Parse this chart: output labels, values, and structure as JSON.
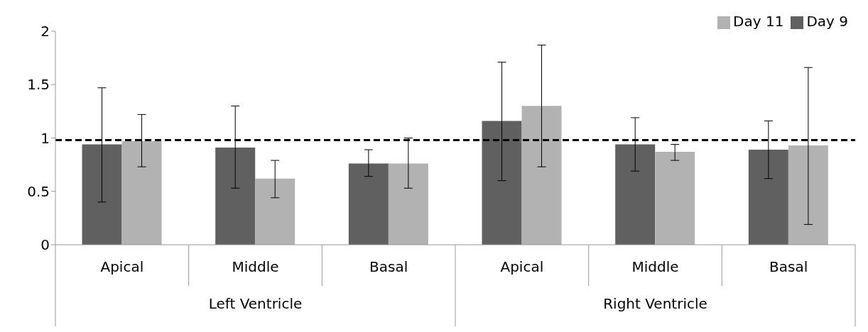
{
  "chart_data": {
    "type": "bar",
    "categories": [
      "Apical",
      "Middle",
      "Basal",
      "Apical",
      "Middle",
      "Basal"
    ],
    "annotations": [
      "Left Ventricle",
      "Right Ventricle"
    ],
    "series": [
      {
        "name": "Day 9",
        "color": "#606060",
        "values": [
          0.94,
          0.91,
          0.76,
          1.16,
          0.94,
          0.89
        ],
        "errors": [
          [
            0.4,
            1.47
          ],
          [
            0.53,
            1.3
          ],
          [
            0.64,
            0.89
          ],
          [
            0.6,
            1.71
          ],
          [
            0.69,
            1.19
          ],
          [
            0.62,
            1.16
          ]
        ]
      },
      {
        "name": "Day 11",
        "color": "#b2b2b2",
        "values": [
          0.97,
          0.62,
          0.76,
          1.3,
          0.87,
          0.93
        ],
        "errors": [
          [
            0.73,
            1.22
          ],
          [
            0.44,
            0.79
          ],
          [
            0.53,
            1.0
          ],
          [
            0.73,
            1.87
          ],
          [
            0.79,
            0.94
          ],
          [
            0.19,
            1.66
          ]
        ]
      }
    ],
    "ylim": [
      0,
      2
    ],
    "yticks": [
      0,
      0.5,
      1,
      1.5,
      2
    ],
    "grid": false,
    "legend": "top right",
    "ref_lines": [
      {
        "axis": "y",
        "value": 0.98,
        "color": "#000000",
        "line_style": "dashed"
      }
    ]
  }
}
